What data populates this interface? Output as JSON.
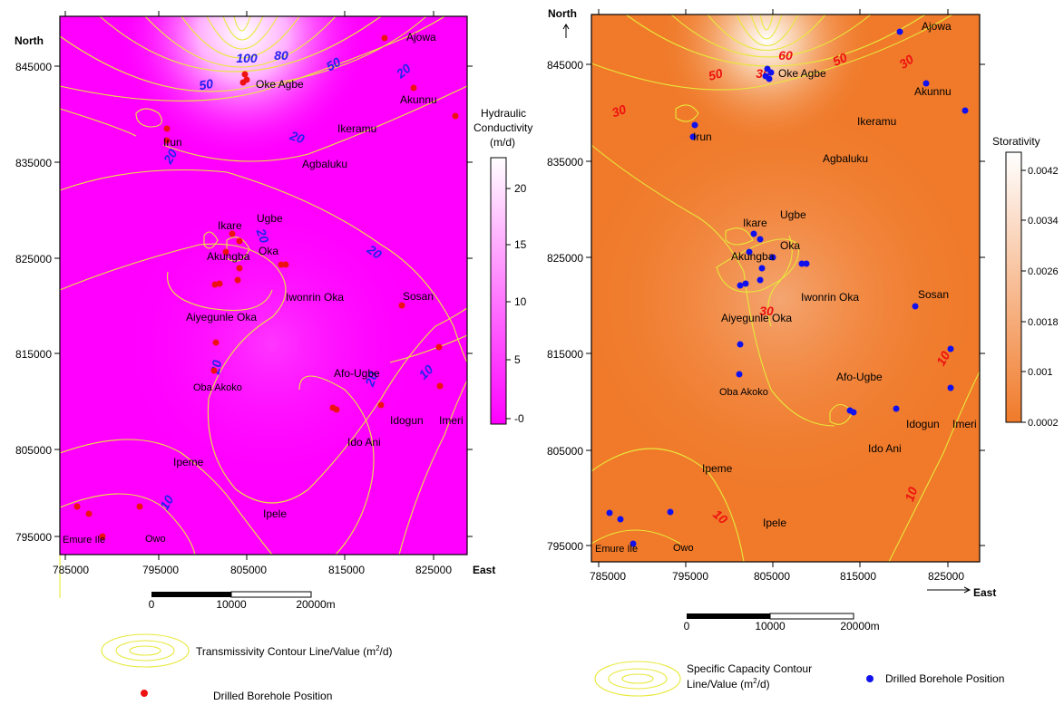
{
  "maps": [
    {
      "id": "left",
      "north_label": "North",
      "east_label": "East",
      "y_ticks": [
        "845000",
        "835000",
        "825000",
        "815000",
        "805000",
        "795000"
      ],
      "x_ticks": [
        "785000",
        "795000",
        "805000",
        "815000",
        "825000"
      ],
      "places": [
        "Ajowa",
        "Oke Agbe",
        "Akunnu",
        "Ikeramu",
        "Irun",
        "Agbaluku",
        "Ikare",
        "Ugbe",
        "Akungba",
        "Oka",
        "Iwonrin Oka",
        "Sosan",
        "Aiyegunle Oka",
        "Afo-Ugbe",
        "Oba Akoko",
        "Idogun",
        "Imeri",
        "Ido Ani",
        "Ipeme",
        "Ipele",
        "Emure Ile",
        "Owo"
      ],
      "contour_labels": [
        "100",
        "80",
        "50",
        "50",
        "20",
        "20",
        "20",
        "20",
        "20",
        "20",
        "20",
        "10",
        "10"
      ],
      "legend": {
        "title_lines": [
          "Hydraulic",
          "Conductivity",
          "(m/d)"
        ],
        "ticks": [
          "20",
          "15",
          "10",
          "5",
          "-0"
        ],
        "colors": [
          "#ffffff",
          "#ff00ff"
        ]
      },
      "scalebar": [
        "0",
        "10000",
        "20000m"
      ],
      "key": [
        {
          "text": "Transmissivity Contour Line/Value (m",
          "sup": "2",
          "after": "/d)"
        },
        {
          "text": "Drilled Borehole Position"
        }
      ],
      "colors": {
        "fill": "#ff00ff",
        "contour": "#e8e83a",
        "label": "#2222ee",
        "borehole": "#ee1111"
      }
    },
    {
      "id": "right",
      "north_label": "North",
      "east_label": "East",
      "y_ticks": [
        "845000",
        "835000",
        "825000",
        "815000",
        "805000",
        "795000"
      ],
      "x_ticks": [
        "785000",
        "795000",
        "805000",
        "815000",
        "825000"
      ],
      "places": [
        "Ajowa",
        "Oke Agbe",
        "Akunnu",
        "Ikeramu",
        "Irun",
        "Agbaluku",
        "Ikare",
        "Ugbe",
        "Akungba",
        "Oka",
        "Iwonrin Oka",
        "Sosan",
        "Aiyegunle Oka",
        "Afo-Ugbe",
        "Oba Akoko",
        "Idogun",
        "Imeri",
        "Ido Ani",
        "Ipeme",
        "Ipele",
        "Emure Ile",
        "Owo"
      ],
      "contour_labels": [
        "60",
        "50",
        "50",
        "30",
        "30",
        "30",
        "30",
        "10",
        "10",
        "10"
      ],
      "legend": {
        "title_lines": [
          "Storativity"
        ],
        "ticks": [
          "0.0042",
          "0.0034",
          "0.0026",
          "0.0018",
          "0.001",
          "0.0002"
        ],
        "colors": [
          "#ffffff",
          "#f07a2a"
        ]
      },
      "scalebar": [
        "0",
        "10000",
        "20000m"
      ],
      "key": [
        {
          "text": "Specific Capacity Contour",
          "text2": "Line/Value (m",
          "sup": "2",
          "after": "/d)"
        },
        {
          "text": "Drilled Borehole Position"
        }
      ],
      "colors": {
        "fill": "#f07a2a",
        "contour": "#e8e83a",
        "label": "#ee1111",
        "borehole": "#1111ee"
      }
    }
  ]
}
